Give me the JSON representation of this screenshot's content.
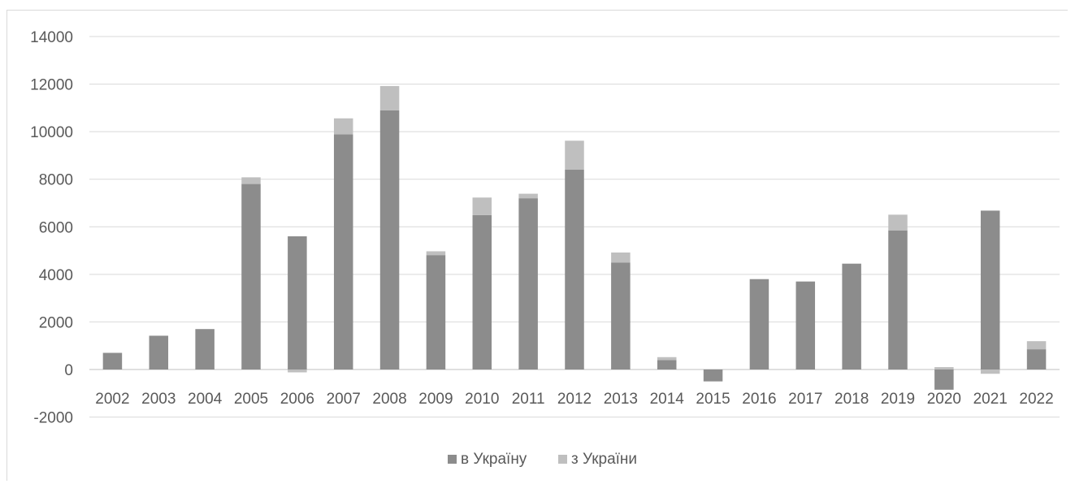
{
  "chart_data": {
    "type": "bar",
    "stacked": true,
    "title": "",
    "xlabel": "",
    "ylabel": "",
    "ylim": [
      -2000,
      14000
    ],
    "yticks": [
      -2000,
      0,
      2000,
      4000,
      6000,
      8000,
      10000,
      12000,
      14000
    ],
    "grid": true,
    "legend_position": "bottom",
    "categories": [
      "2002",
      "2003",
      "2004",
      "2005",
      "2006",
      "2007",
      "2008",
      "2009",
      "2010",
      "2011",
      "2012",
      "2013",
      "2014",
      "2015",
      "2016",
      "2017",
      "2018",
      "2019",
      "2020",
      "2021",
      "2022"
    ],
    "series": [
      {
        "name": "в Україну",
        "color": "#8c8c8c",
        "values": [
          700,
          1420,
          1700,
          7800,
          5600,
          9890,
          10900,
          4810,
          6490,
          7200,
          8400,
          4500,
          400,
          -500,
          3800,
          3700,
          4450,
          5850,
          -850,
          6680,
          850
        ]
      },
      {
        "name": "з України",
        "color": "#bfbfbf",
        "values": [
          0,
          0,
          0,
          280,
          -120,
          670,
          1020,
          160,
          740,
          190,
          1220,
          420,
          120,
          0,
          0,
          0,
          0,
          660,
          100,
          -180,
          340
        ]
      }
    ]
  }
}
